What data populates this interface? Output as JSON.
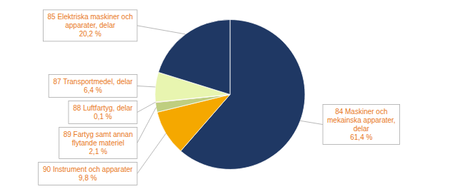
{
  "chart_data": {
    "type": "pie",
    "categories": [
      "84 Maskiner och\nmekainska apparater,\ndelar",
      "90 Instrument och apparater",
      "89 Fartyg samt annan\nflytande materiel",
      "88 Luftfartyg, delar",
      "87 Transportmedel, delar",
      "85 Elektriska maskiner och\napparater, delar"
    ],
    "values": [
      61.4,
      9.8,
      2.1,
      0.1,
      6.4,
      20.2
    ],
    "value_labels": [
      "61,4 %",
      "9,8 %",
      "2,1 %",
      "0,1 %",
      "6,4 %",
      "20,2 %"
    ],
    "colors": [
      "#1F3864",
      "#F5A800",
      "#BFCE80",
      "#C00000",
      "#E8F5B0",
      "#1F3864"
    ],
    "data_labels": true
  }
}
